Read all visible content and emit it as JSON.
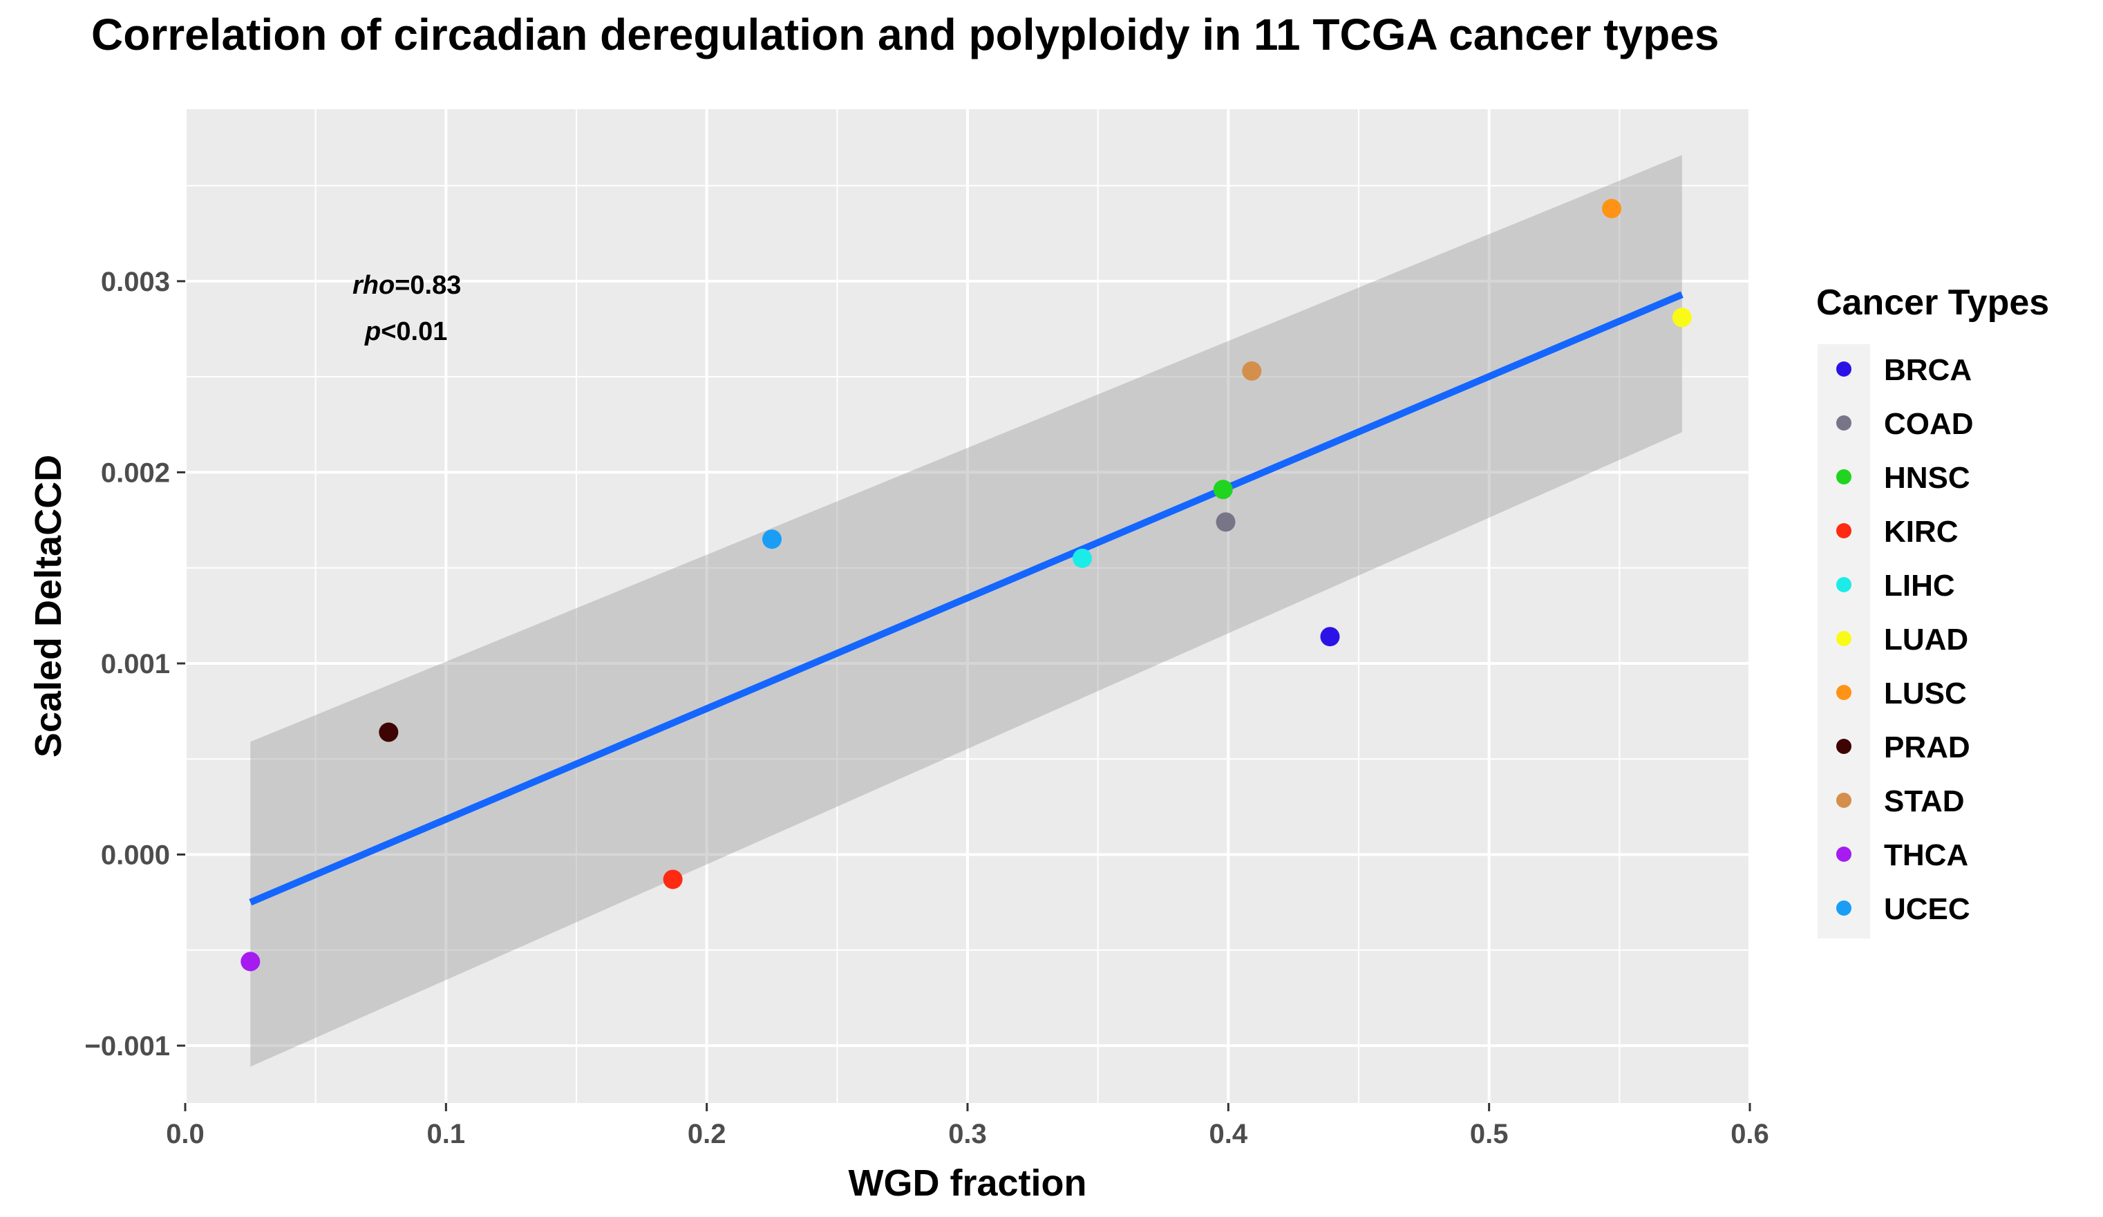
{
  "chart_data": {
    "type": "scatter",
    "title": "Correlation of circadian deregulation and polyploidy in 11 TCGA cancer types",
    "xlabel": "WGD  fraction",
    "ylabel": "Scaled  DeltaCCD",
    "xlim": [
      0.0,
      0.6
    ],
    "ylim": [
      -0.0013,
      0.0039
    ],
    "x_ticks": [
      0.0,
      0.1,
      0.2,
      0.3,
      0.4,
      0.5,
      0.6
    ],
    "x_tick_labels": [
      "0.0",
      "0.1",
      "0.2",
      "0.3",
      "0.4",
      "0.5",
      "0.6"
    ],
    "y_ticks": [
      -0.001,
      0.0,
      0.001,
      0.002,
      0.003
    ],
    "y_tick_labels": [
      "−0.001",
      "0.000",
      "0.001",
      "0.002",
      "0.003"
    ],
    "grid": true,
    "legend": {
      "title": "Cancer  Types",
      "position": "right"
    },
    "annotation": {
      "rho_label": "rho",
      "rho_value": "=0.83",
      "p_label": "p",
      "p_value": "<0.01"
    },
    "regression": {
      "x": [
        0.025,
        0.574
      ],
      "y": [
        -0.00025,
        0.00293
      ],
      "ci_lower": [
        -0.00111,
        0.00221
      ],
      "ci_upper": [
        0.00059,
        0.00366
      ],
      "color": "#1466FF"
    },
    "points": [
      {
        "label": "BRCA",
        "x": 0.439,
        "y": 0.00114,
        "color": "#2B13E8"
      },
      {
        "label": "COAD",
        "x": 0.399,
        "y": 0.00174,
        "color": "#797588"
      },
      {
        "label": "HNSC",
        "x": 0.398,
        "y": 0.00191,
        "color": "#20D420"
      },
      {
        "label": "KIRC",
        "x": 0.187,
        "y": -0.00013,
        "color": "#FF2A12"
      },
      {
        "label": "LIHC",
        "x": 0.344,
        "y": 0.00155,
        "color": "#1CECE7"
      },
      {
        "label": "LUAD",
        "x": 0.574,
        "y": 0.00281,
        "color": "#FAFA17"
      },
      {
        "label": "LUSC",
        "x": 0.547,
        "y": 0.00338,
        "color": "#FF9315"
      },
      {
        "label": "PRAD",
        "x": 0.078,
        "y": 0.00064,
        "color": "#3D0403"
      },
      {
        "label": "STAD",
        "x": 0.409,
        "y": 0.00253,
        "color": "#D58F4C"
      },
      {
        "label": "THCA",
        "x": 0.025,
        "y": -0.00056,
        "color": "#A51BF0"
      },
      {
        "label": "UCEC",
        "x": 0.225,
        "y": 0.00165,
        "color": "#1A9EF5"
      }
    ]
  }
}
